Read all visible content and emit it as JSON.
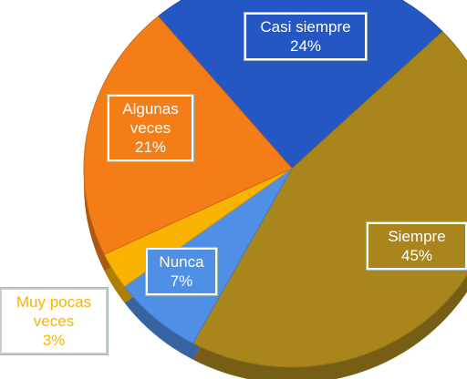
{
  "chart_data": {
    "type": "pie",
    "categories": [
      "Casi siempre",
      "Siempre",
      "Nunca",
      "Muy pocas veces",
      "Algunas veces"
    ],
    "values": [
      24,
      45,
      7,
      3,
      21
    ],
    "value_labels": [
      "24%",
      "45%",
      "7%",
      "3%",
      "21%"
    ],
    "colors": [
      "#2456c4",
      "#a8861c",
      "#4f8fe6",
      "#f8b400",
      "#f57d18"
    ]
  }
}
